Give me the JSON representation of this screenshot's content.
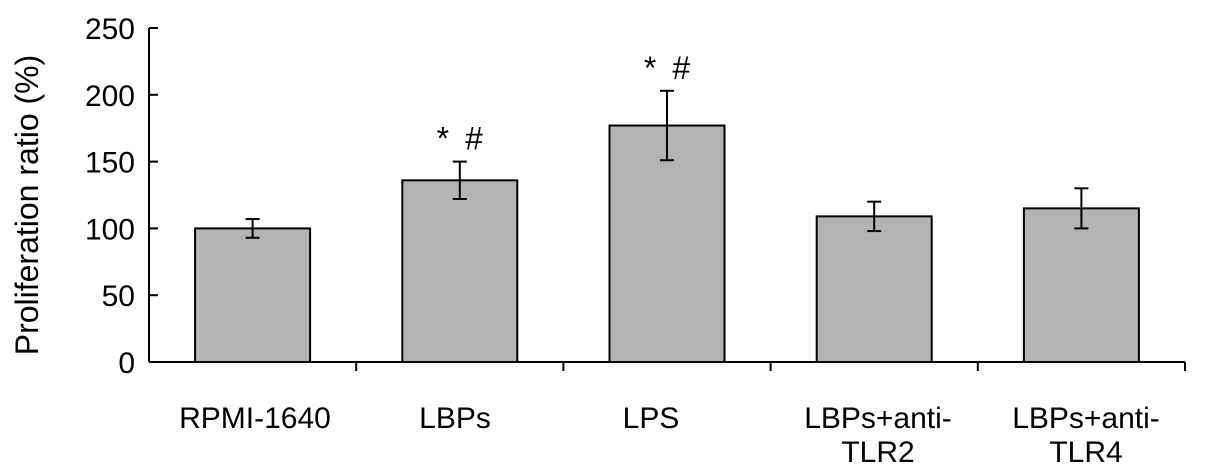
{
  "chart_data": {
    "type": "bar",
    "title": "",
    "xlabel": "",
    "ylabel": "Proliferation ratio (%)",
    "ylim": [
      0,
      250
    ],
    "yticks": [
      "0",
      "50",
      "100",
      "150",
      "200",
      "250"
    ],
    "grid": false,
    "categories": [
      [
        "RPMI-1640"
      ],
      [
        "LBPs"
      ],
      [
        "LPS"
      ],
      [
        "LBPs+anti-",
        "TLR2"
      ],
      [
        "LBPs+anti-",
        "TLR4"
      ]
    ],
    "values": [
      100,
      136,
      177,
      109,
      115
    ],
    "errors": [
      7,
      14,
      26,
      11,
      15
    ],
    "annotations": [
      "",
      "* #",
      "* #",
      "",
      ""
    ],
    "colors": {
      "bar": "#b3b3b3",
      "stroke": "#000000"
    }
  }
}
